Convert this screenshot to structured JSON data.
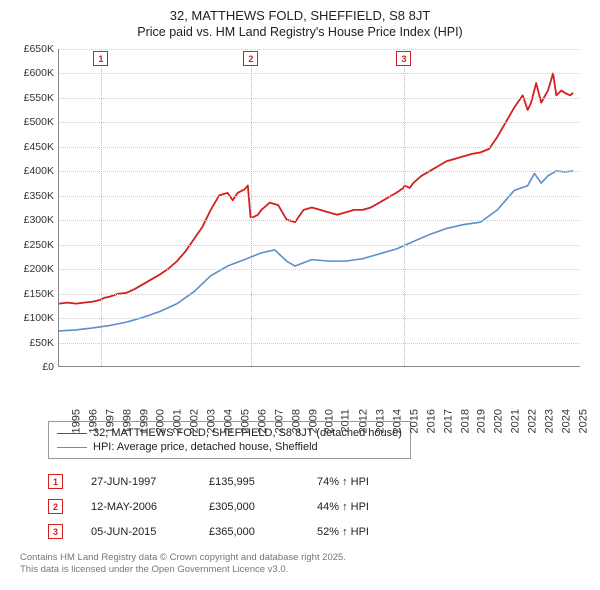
{
  "title": {
    "line1": "32, MATTHEWS FOLD, SHEFFIELD, S8 8JT",
    "line2": "Price paid vs. HM Land Registry's House Price Index (HPI)"
  },
  "chart": {
    "type": "line",
    "background_color": "#ffffff",
    "grid_color": "#cccccc",
    "marker_line_color": "#bbbbbb",
    "axis_color": "#888888",
    "x": {
      "min": 1995,
      "max": 2025.9,
      "ticks": [
        1995,
        1996,
        1997,
        1998,
        1999,
        2000,
        2001,
        2002,
        2003,
        2004,
        2005,
        2006,
        2007,
        2008,
        2009,
        2010,
        2011,
        2012,
        2013,
        2014,
        2015,
        2016,
        2017,
        2018,
        2019,
        2020,
        2021,
        2022,
        2023,
        2024,
        2025
      ]
    },
    "y": {
      "min": 0,
      "max": 650000,
      "tick_step": 50000,
      "tick_labels": [
        "£0",
        "£50K",
        "£100K",
        "£150K",
        "£200K",
        "£250K",
        "£300K",
        "£350K",
        "£400K",
        "£450K",
        "£500K",
        "£550K",
        "£600K",
        "£650K"
      ]
    },
    "series": [
      {
        "id": "property",
        "label": "32, MATTHEWS FOLD, SHEFFIELD, S8 8JT (detached house)",
        "color": "#d21f1f",
        "width": 1.8,
        "points": [
          [
            1995.0,
            128000
          ],
          [
            1995.5,
            130000
          ],
          [
            1996.0,
            128000
          ],
          [
            1996.5,
            130000
          ],
          [
            1997.0,
            132000
          ],
          [
            1997.48,
            135995
          ],
          [
            1997.7,
            140000
          ],
          [
            1998.0,
            142000
          ],
          [
            1998.5,
            148000
          ],
          [
            1999.0,
            150000
          ],
          [
            1999.5,
            158000
          ],
          [
            2000.0,
            168000
          ],
          [
            2000.5,
            178000
          ],
          [
            2001.0,
            188000
          ],
          [
            2001.5,
            200000
          ],
          [
            2002.0,
            215000
          ],
          [
            2002.5,
            235000
          ],
          [
            2003.0,
            260000
          ],
          [
            2003.5,
            285000
          ],
          [
            2004.0,
            320000
          ],
          [
            2004.5,
            350000
          ],
          [
            2005.0,
            355000
          ],
          [
            2005.3,
            340000
          ],
          [
            2005.6,
            355000
          ],
          [
            2006.0,
            362000
          ],
          [
            2006.2,
            370000
          ],
          [
            2006.36,
            305000
          ],
          [
            2006.5,
            305000
          ],
          [
            2006.8,
            310000
          ],
          [
            2007.0,
            320000
          ],
          [
            2007.5,
            335000
          ],
          [
            2008.0,
            330000
          ],
          [
            2008.5,
            300000
          ],
          [
            2009.0,
            295000
          ],
          [
            2009.5,
            320000
          ],
          [
            2010.0,
            325000
          ],
          [
            2010.5,
            320000
          ],
          [
            2011.0,
            315000
          ],
          [
            2011.5,
            310000
          ],
          [
            2012.0,
            315000
          ],
          [
            2012.5,
            320000
          ],
          [
            2013.0,
            320000
          ],
          [
            2013.5,
            325000
          ],
          [
            2014.0,
            335000
          ],
          [
            2014.5,
            345000
          ],
          [
            2015.0,
            355000
          ],
          [
            2015.42,
            365000
          ],
          [
            2015.5,
            370000
          ],
          [
            2015.8,
            365000
          ],
          [
            2016.0,
            375000
          ],
          [
            2016.5,
            390000
          ],
          [
            2017.0,
            400000
          ],
          [
            2017.5,
            410000
          ],
          [
            2018.0,
            420000
          ],
          [
            2018.5,
            425000
          ],
          [
            2019.0,
            430000
          ],
          [
            2019.5,
            435000
          ],
          [
            2020.0,
            438000
          ],
          [
            2020.5,
            445000
          ],
          [
            2021.0,
            470000
          ],
          [
            2021.5,
            500000
          ],
          [
            2022.0,
            530000
          ],
          [
            2022.5,
            555000
          ],
          [
            2022.8,
            525000
          ],
          [
            2023.0,
            540000
          ],
          [
            2023.3,
            580000
          ],
          [
            2023.6,
            540000
          ],
          [
            2024.0,
            565000
          ],
          [
            2024.3,
            600000
          ],
          [
            2024.5,
            555000
          ],
          [
            2024.8,
            565000
          ],
          [
            2025.0,
            560000
          ],
          [
            2025.3,
            555000
          ],
          [
            2025.5,
            560000
          ]
        ]
      },
      {
        "id": "hpi",
        "label": "HPI: Average price, detached house, Sheffield",
        "color": "#5b8fc7",
        "width": 1.6,
        "points": [
          [
            1995.0,
            72000
          ],
          [
            1996.0,
            74000
          ],
          [
            1997.0,
            78000
          ],
          [
            1998.0,
            83000
          ],
          [
            1999.0,
            90000
          ],
          [
            2000.0,
            100000
          ],
          [
            2001.0,
            112000
          ],
          [
            2002.0,
            128000
          ],
          [
            2003.0,
            152000
          ],
          [
            2004.0,
            185000
          ],
          [
            2005.0,
            205000
          ],
          [
            2006.0,
            218000
          ],
          [
            2007.0,
            232000
          ],
          [
            2007.8,
            238000
          ],
          [
            2008.5,
            215000
          ],
          [
            2009.0,
            205000
          ],
          [
            2010.0,
            218000
          ],
          [
            2011.0,
            215000
          ],
          [
            2012.0,
            215000
          ],
          [
            2013.0,
            220000
          ],
          [
            2014.0,
            230000
          ],
          [
            2015.0,
            240000
          ],
          [
            2016.0,
            255000
          ],
          [
            2017.0,
            270000
          ],
          [
            2018.0,
            282000
          ],
          [
            2019.0,
            290000
          ],
          [
            2020.0,
            295000
          ],
          [
            2021.0,
            320000
          ],
          [
            2022.0,
            360000
          ],
          [
            2022.8,
            370000
          ],
          [
            2023.2,
            395000
          ],
          [
            2023.6,
            375000
          ],
          [
            2024.0,
            390000
          ],
          [
            2024.5,
            400000
          ],
          [
            2025.0,
            398000
          ],
          [
            2025.5,
            400000
          ]
        ]
      }
    ],
    "markers": [
      {
        "n": "1",
        "x": 1997.48,
        "color": "#d21f1f"
      },
      {
        "n": "2",
        "x": 2006.36,
        "color": "#d21f1f"
      },
      {
        "n": "3",
        "x": 2015.42,
        "color": "#d21f1f"
      }
    ]
  },
  "legend": {
    "items": [
      {
        "series": "property"
      },
      {
        "series": "hpi"
      }
    ]
  },
  "events": [
    {
      "n": "1",
      "date": "27-JUN-1997",
      "price": "£135,995",
      "diff": "74% ↑ HPI",
      "color": "#d21f1f"
    },
    {
      "n": "2",
      "date": "12-MAY-2006",
      "price": "£305,000",
      "diff": "44% ↑ HPI",
      "color": "#d21f1f"
    },
    {
      "n": "3",
      "date": "05-JUN-2015",
      "price": "£365,000",
      "diff": "52% ↑ HPI",
      "color": "#d21f1f"
    }
  ],
  "footer": {
    "line1": "Contains HM Land Registry data © Crown copyright and database right 2025.",
    "line2": "This data is licensed under the Open Government Licence v3.0."
  }
}
